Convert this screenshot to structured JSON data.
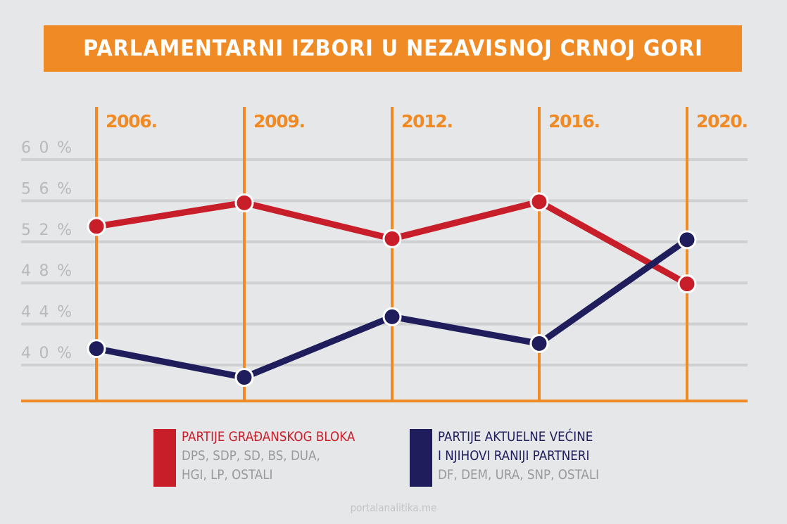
{
  "title": "PARLAMENTARNI IZBORI U NEZAVISNOJ CRNOJ GORI",
  "footer": "portalanalitika.me",
  "colors": {
    "background": "#e6e7e9",
    "accent": "#f08a24",
    "series_red": "#c81e2a",
    "series_blue": "#1f1d5c",
    "grid": "#cfd0d2",
    "tick_text": "#b8b9bb"
  },
  "chart_data": {
    "type": "line",
    "title": "PARLAMENTARNI IZBORI U NEZAVISNOJ CRNOJ GORI",
    "categories": [
      "2006.",
      "2009.",
      "2012.",
      "2016.",
      "2020."
    ],
    "y_ticks": [
      40,
      44,
      48,
      52,
      56,
      60
    ],
    "y_tick_labels": [
      "40%",
      "44%",
      "48%",
      "52%",
      "56%",
      "60%"
    ],
    "ylim": [
      36.5,
      62
    ],
    "grid": true,
    "legend_position": "bottom",
    "series": [
      {
        "name": "PARTIJE GRAĐANSKOG BLOKA",
        "color": "#c81e2a",
        "values": [
          53.5,
          55.8,
          52.3,
          55.9,
          47.9
        ]
      },
      {
        "name": "PARTIJE AKTUELNE VEĆINE I NJIHOVI RANIJI PARTNERI",
        "color": "#1f1d5c",
        "values": [
          41.6,
          38.8,
          44.7,
          42.1,
          52.2
        ]
      }
    ]
  },
  "legend": [
    {
      "title": "PARTIJE GRAĐANSKOG BLOKA",
      "lines": [
        "DPS, SDP, SD, BS, DUA,",
        "HGI, LP, OSTALI"
      ],
      "color": "#c81e2a"
    },
    {
      "title_lines": [
        "PARTIJE AKTUELNE VEĆINE",
        "I NJIHOVI RANIJI PARTNERI"
      ],
      "lines": [
        "DF, DEM, URA, SNP, OSTALI"
      ],
      "color": "#1f1d5c"
    }
  ]
}
